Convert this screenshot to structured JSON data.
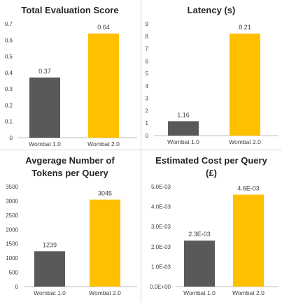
{
  "colors": {
    "wombat_1": "#595959",
    "wombat_2": "#FFC000",
    "text": "#404040",
    "title": "#262626",
    "axis": "#bfbfbf"
  },
  "chart_data": [
    {
      "type": "bar",
      "title": "Total Evaluation Score",
      "categories": [
        "Wombat 1.0",
        "Wombat 2.0"
      ],
      "values": [
        0.37,
        0.64
      ],
      "value_labels": [
        "0.37",
        "0.64"
      ],
      "ylim": [
        0,
        0.7
      ],
      "yticks": [
        0,
        0.1,
        0.2,
        0.3,
        0.4,
        0.5,
        0.6,
        0.7
      ],
      "ytick_labels": [
        "0",
        "0.1",
        "0.2",
        "0.3",
        "0.4",
        "0.5",
        "0.6",
        "0.7"
      ],
      "grid": false,
      "xlabel": "",
      "ylabel": ""
    },
    {
      "type": "bar",
      "title": "Latency (s)",
      "categories": [
        "Wombat 1.0",
        "Wombat 2.0"
      ],
      "values": [
        1.16,
        8.21
      ],
      "value_labels": [
        "1.16",
        "8.21"
      ],
      "ylim": [
        0,
        9
      ],
      "yticks": [
        0,
        1,
        2,
        3,
        4,
        5,
        6,
        7,
        8,
        9
      ],
      "ytick_labels": [
        "0",
        "1",
        "2",
        "3",
        "4",
        "5",
        "6",
        "7",
        "8",
        "9"
      ],
      "grid": false,
      "xlabel": "",
      "ylabel": ""
    },
    {
      "type": "bar",
      "title": "Avgerage Number of Tokens per Query",
      "title_lines": [
        "Avgerage Number of",
        "Tokens per Query"
      ],
      "categories": [
        "Wombat 1.0",
        "Wombat 2.0"
      ],
      "values": [
        1239,
        3045
      ],
      "value_labels": [
        "1239",
        "3045"
      ],
      "ylim": [
        0,
        3500
      ],
      "yticks": [
        0,
        500,
        1000,
        1500,
        2000,
        2500,
        3000,
        3500
      ],
      "ytick_labels": [
        "0",
        "500",
        "1000",
        "1500",
        "2000",
        "2500",
        "3000",
        "3500"
      ],
      "grid": false,
      "xlabel": "",
      "ylabel": ""
    },
    {
      "type": "bar",
      "title": "Estimated Cost per Query (£)",
      "title_lines": [
        "Estimated Cost per Query",
        "(£)"
      ],
      "categories": [
        "Wombat 1.0",
        "Wombat 2.0"
      ],
      "values": [
        0.0023,
        0.0046
      ],
      "value_labels": [
        "2.3E-03",
        "4.6E-03"
      ],
      "ylim": [
        0,
        0.005
      ],
      "yticks": [
        0,
        0.001,
        0.002,
        0.003,
        0.004,
        0.005
      ],
      "ytick_labels": [
        "0.0E+00",
        "1.0E-03",
        "2.0E-03",
        "3.0E-03",
        "4.0E-03",
        "5.0E-03"
      ],
      "grid": false,
      "xlabel": "",
      "ylabel": ""
    }
  ]
}
